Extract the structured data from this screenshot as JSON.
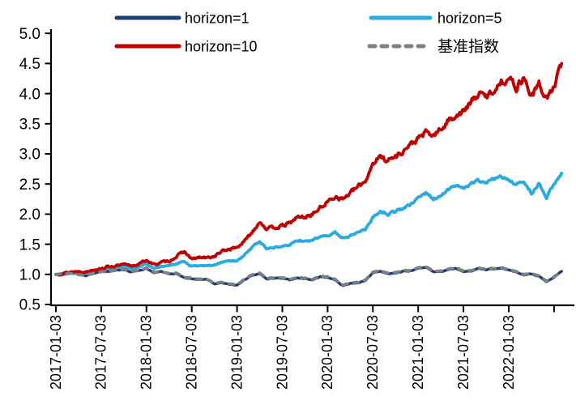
{
  "chart_data": {
    "type": "line",
    "title": "",
    "grid": false,
    "legend_position": "top",
    "y_axis": {
      "min": 0.5,
      "max": 5.0,
      "tick_labels": [
        "0.5",
        "1.0",
        "1.5",
        "2.0",
        "2.5",
        "3.0",
        "3.5",
        "4.0",
        "4.5",
        "5.0"
      ]
    },
    "x_axis": {
      "start": "2017-01",
      "step": "1 month",
      "tick_interval_months": 6,
      "tick_labels": [
        "2017-01-03",
        "2017-07-03",
        "2018-01-03",
        "2018-07-03",
        "2019-01-03",
        "2019-07-03",
        "2020-01-03",
        "2020-07-03",
        "2021-01-03",
        "2021-07-03",
        "2022-01-03"
      ],
      "extra_unlabeled_tick_month": 66
    },
    "series": [
      {
        "name": "horizon=1",
        "color": "#1E3C78",
        "line_style": "solid",
        "values": [
          1.0,
          1.0,
          1.02,
          1.01,
          0.97,
          1.02,
          1.05,
          1.05,
          1.07,
          1.07,
          1.04,
          1.06,
          1.1,
          1.02,
          1.05,
          1.0,
          1.01,
          0.95,
          0.93,
          0.91,
          0.92,
          0.84,
          0.86,
          0.83,
          0.82,
          0.91,
          0.98,
          1.01,
          0.92,
          0.94,
          0.93,
          0.91,
          0.94,
          0.93,
          0.91,
          0.96,
          0.95,
          0.91,
          0.81,
          0.85,
          0.86,
          0.89,
          1.03,
          1.05,
          1.01,
          1.02,
          1.05,
          1.06,
          1.1,
          1.12,
          1.04,
          1.04,
          1.08,
          1.1,
          1.05,
          1.05,
          1.1,
          1.08,
          1.09,
          1.11,
          1.07,
          1.03,
          0.99,
          1.01,
          0.97,
          0.87,
          0.95,
          1.05
        ]
      },
      {
        "name": "horizon=5",
        "color": "#29ABE2",
        "line_style": "solid",
        "values": [
          1.0,
          1.01,
          1.03,
          1.03,
          1.02,
          1.06,
          1.08,
          1.1,
          1.11,
          1.13,
          1.1,
          1.12,
          1.18,
          1.1,
          1.13,
          1.14,
          1.18,
          1.22,
          1.13,
          1.15,
          1.14,
          1.15,
          1.2,
          1.22,
          1.22,
          1.32,
          1.45,
          1.55,
          1.42,
          1.45,
          1.48,
          1.5,
          1.56,
          1.55,
          1.56,
          1.62,
          1.65,
          1.7,
          1.6,
          1.65,
          1.7,
          1.75,
          1.95,
          2.05,
          2.0,
          2.05,
          2.1,
          2.15,
          2.28,
          2.35,
          2.25,
          2.3,
          2.4,
          2.48,
          2.45,
          2.5,
          2.56,
          2.52,
          2.58,
          2.62,
          2.58,
          2.48,
          2.55,
          2.35,
          2.5,
          2.28,
          2.5,
          2.68
        ]
      },
      {
        "name": "horizon=10",
        "color": "#C00000",
        "line_style": "solid",
        "values": [
          1.0,
          1.02,
          1.04,
          1.05,
          1.04,
          1.08,
          1.1,
          1.13,
          1.14,
          1.16,
          1.14,
          1.17,
          1.24,
          1.16,
          1.2,
          1.22,
          1.3,
          1.38,
          1.25,
          1.28,
          1.27,
          1.3,
          1.38,
          1.42,
          1.45,
          1.55,
          1.7,
          1.88,
          1.75,
          1.78,
          1.8,
          1.85,
          1.95,
          1.95,
          2.0,
          2.1,
          2.2,
          2.3,
          2.25,
          2.35,
          2.45,
          2.55,
          2.85,
          2.95,
          2.9,
          2.95,
          3.05,
          3.15,
          3.25,
          3.35,
          3.3,
          3.4,
          3.55,
          3.65,
          3.7,
          3.85,
          4.0,
          3.95,
          4.05,
          4.2,
          4.26,
          4.1,
          4.28,
          3.95,
          4.15,
          3.92,
          4.1,
          4.5
        ]
      },
      {
        "name": "基准指数",
        "color": "#7F7F7F",
        "line_style": "dashed",
        "values": [
          1.0,
          1.01,
          1.02,
          1.0,
          0.98,
          1.02,
          1.04,
          1.06,
          1.06,
          1.08,
          1.05,
          1.06,
          1.11,
          1.03,
          1.04,
          1.01,
          1.02,
          0.96,
          0.94,
          0.92,
          0.92,
          0.85,
          0.87,
          0.84,
          0.83,
          0.92,
          0.99,
          1.02,
          0.93,
          0.95,
          0.94,
          0.92,
          0.95,
          0.94,
          0.92,
          0.97,
          0.96,
          0.92,
          0.82,
          0.86,
          0.87,
          0.9,
          1.04,
          1.06,
          1.02,
          1.03,
          1.06,
          1.07,
          1.11,
          1.13,
          1.05,
          1.05,
          1.09,
          1.11,
          1.06,
          1.06,
          1.11,
          1.09,
          1.1,
          1.12,
          1.08,
          1.04,
          1.0,
          1.02,
          0.98,
          0.88,
          0.96,
          1.04
        ]
      }
    ]
  }
}
